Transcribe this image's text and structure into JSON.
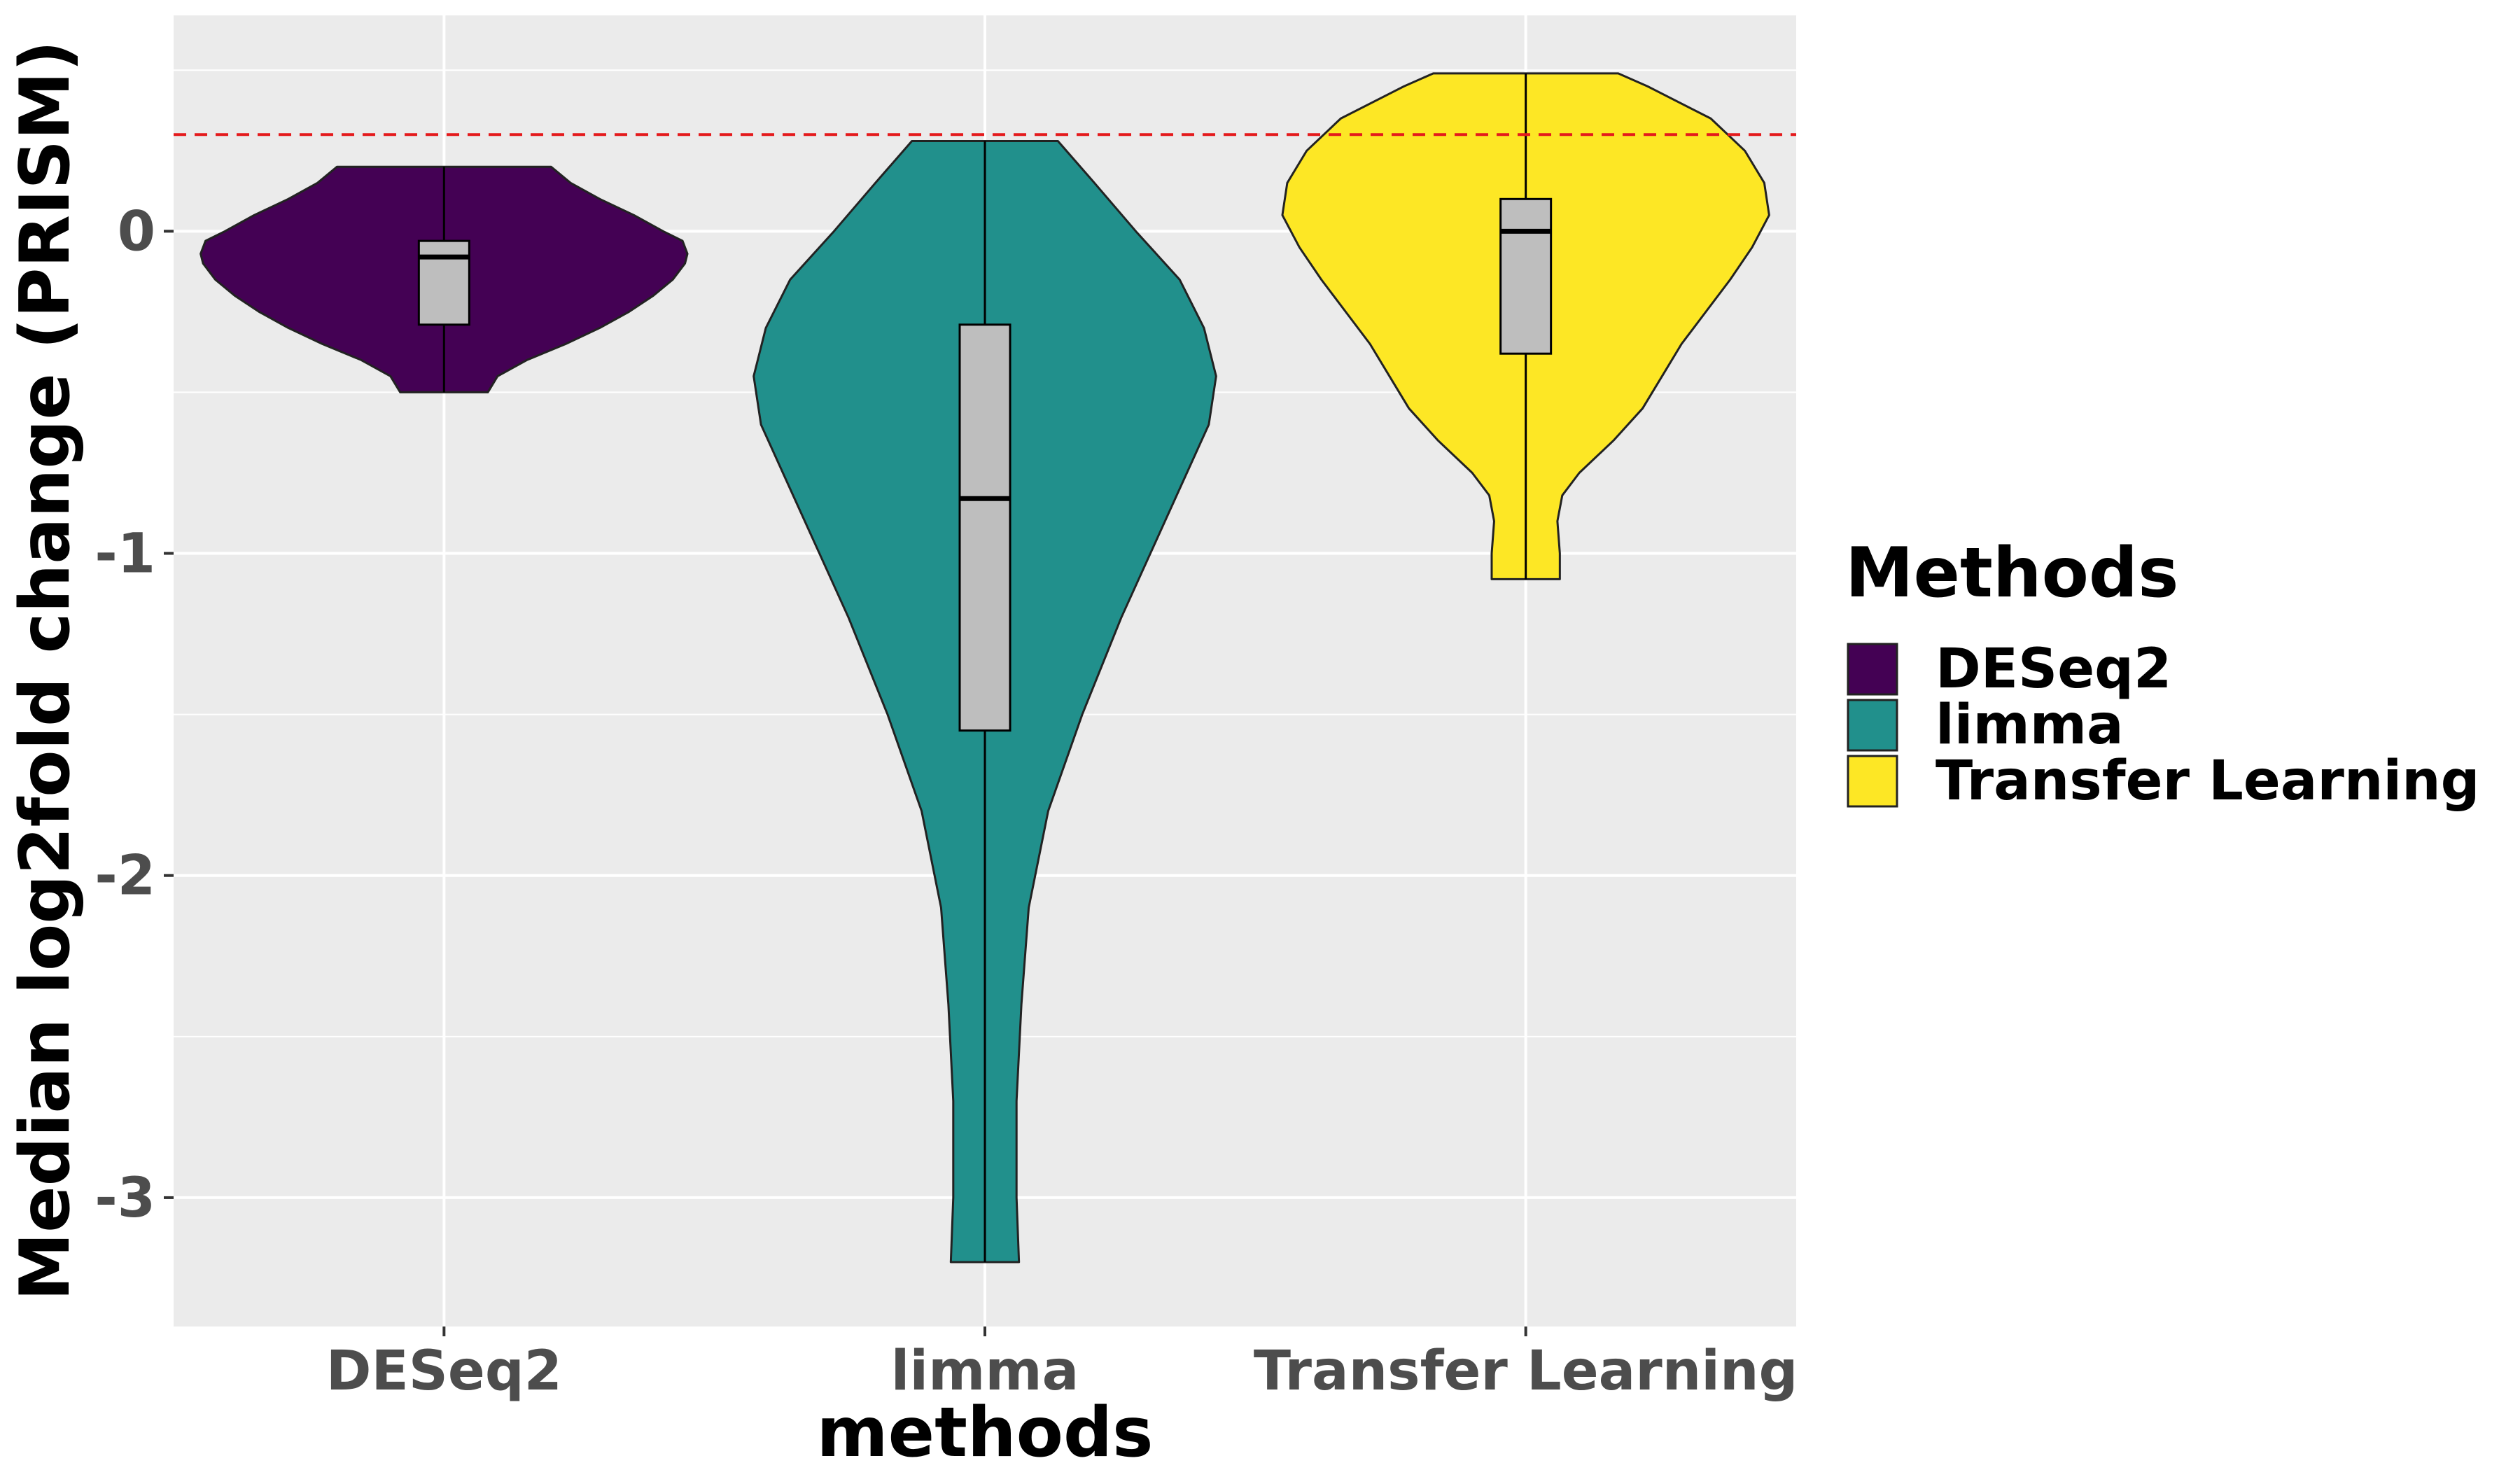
{
  "chart_data": {
    "type": "violin",
    "title": "",
    "xlabel": "methods",
    "ylabel": "Median log2fold change (PRISM)",
    "categories": [
      "DESeq2",
      "limma",
      "Transfer Learning"
    ],
    "ylim": [
      -3.4,
      0.67
    ],
    "y_ticks": [
      0,
      -1,
      -2,
      -3
    ],
    "y_tick_labels": [
      "0",
      "-1",
      "-2",
      "-3"
    ],
    "grid": true,
    "reference_line": {
      "y": 0.3,
      "style": "dashed",
      "color": "#e41a1c"
    },
    "legend": {
      "title": "Methods",
      "placement": "right",
      "entries": [
        "DESeq2",
        "limma",
        "Transfer Learning"
      ]
    },
    "series": [
      {
        "name": "DESeq2",
        "color": "#440154",
        "min": -0.5,
        "max": 0.2,
        "box": {
          "q1": -0.29,
          "median": -0.08,
          "q3": -0.03
        },
        "violin_profile": [
          [
            -0.5,
            0.18
          ],
          [
            -0.45,
            0.22
          ],
          [
            -0.4,
            0.34
          ],
          [
            -0.35,
            0.5
          ],
          [
            -0.3,
            0.64
          ],
          [
            -0.25,
            0.76
          ],
          [
            -0.2,
            0.86
          ],
          [
            -0.15,
            0.94
          ],
          [
            -0.1,
            0.99
          ],
          [
            -0.07,
            1.0
          ],
          [
            -0.03,
            0.98
          ],
          [
            0.0,
            0.9
          ],
          [
            0.05,
            0.78
          ],
          [
            0.1,
            0.64
          ],
          [
            0.15,
            0.52
          ],
          [
            0.2,
            0.44
          ]
        ]
      },
      {
        "name": "limma",
        "color": "#21908c",
        "min": -3.2,
        "max": 0.28,
        "box": {
          "q1": -1.55,
          "median": -0.83,
          "q3": -0.29
        },
        "violin_profile": [
          [
            -3.2,
            0.14
          ],
          [
            -3.0,
            0.13
          ],
          [
            -2.7,
            0.13
          ],
          [
            -2.4,
            0.15
          ],
          [
            -2.1,
            0.18
          ],
          [
            -1.8,
            0.26
          ],
          [
            -1.5,
            0.4
          ],
          [
            -1.2,
            0.56
          ],
          [
            -0.9,
            0.74
          ],
          [
            -0.7,
            0.86
          ],
          [
            -0.6,
            0.92
          ],
          [
            -0.45,
            0.95
          ],
          [
            -0.3,
            0.9
          ],
          [
            -0.15,
            0.8
          ],
          [
            0.0,
            0.62
          ],
          [
            0.15,
            0.45
          ],
          [
            0.28,
            0.3
          ]
        ]
      },
      {
        "name": "Transfer Learning",
        "color": "#fde725",
        "min": -1.08,
        "max": 0.49,
        "box": {
          "q1": -0.38,
          "median": 0.0,
          "q3": 0.1
        },
        "violin_profile": [
          [
            -1.08,
            0.14
          ],
          [
            -1.0,
            0.14
          ],
          [
            -0.9,
            0.13
          ],
          [
            -0.82,
            0.15
          ],
          [
            -0.75,
            0.22
          ],
          [
            -0.65,
            0.36
          ],
          [
            -0.55,
            0.48
          ],
          [
            -0.45,
            0.56
          ],
          [
            -0.35,
            0.64
          ],
          [
            -0.25,
            0.74
          ],
          [
            -0.15,
            0.84
          ],
          [
            -0.05,
            0.93
          ],
          [
            0.05,
            1.0
          ],
          [
            0.15,
            0.98
          ],
          [
            0.25,
            0.9
          ],
          [
            0.35,
            0.76
          ],
          [
            0.45,
            0.5
          ],
          [
            0.49,
            0.38
          ]
        ]
      }
    ]
  }
}
